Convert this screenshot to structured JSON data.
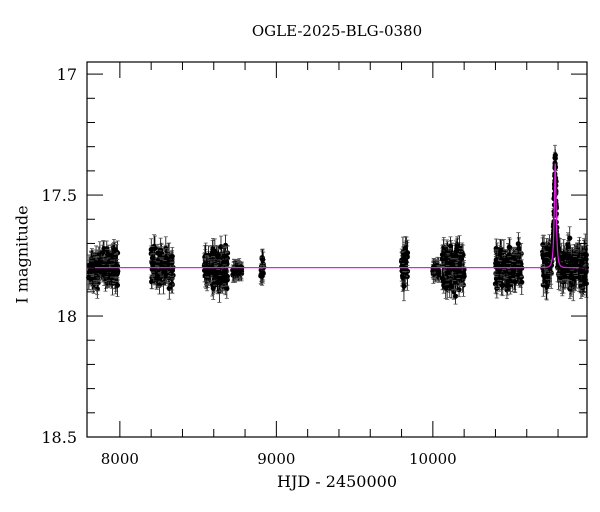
{
  "chart_data": {
    "type": "scatter",
    "title": "OGLE-2025-BLG-0380",
    "xlabel": "HJD - 2450000",
    "ylabel": "I magnitude",
    "xlim": [
      7790,
      10985
    ],
    "ylim": [
      18.5,
      16.95
    ],
    "y_inverted": true,
    "x_ticks": [
      8000,
      9000,
      10000
    ],
    "x_tick_labels": [
      "8000",
      "9000",
      "10000"
    ],
    "y_ticks": [
      17,
      17.5,
      18,
      18.5
    ],
    "y_tick_labels": [
      "17",
      "17.5",
      "18",
      "18.5"
    ],
    "grid": false,
    "legend": null,
    "series": [
      {
        "name": "OGLE I-band photometry",
        "kind": "points_with_errorbars",
        "color": "#000000",
        "seasons": [
          {
            "x_range": [
              7800,
              7990
            ],
            "mag_center": 17.8,
            "mag_spread": 0.07,
            "err": 0.04
          },
          {
            "x_range": [
              8200,
              8340
            ],
            "mag_center": 17.8,
            "mag_spread": 0.07,
            "err": 0.04
          },
          {
            "x_range": [
              8540,
              8690
            ],
            "mag_center": 17.8,
            "mag_spread": 0.08,
            "err": 0.04
          },
          {
            "x_range": [
              8720,
              8780
            ],
            "mag_center": 17.81,
            "mag_spread": 0.02,
            "err": 0.03
          },
          {
            "x_range": [
              8900,
              8920
            ],
            "mag_center": 17.8,
            "mag_spread": 0.05,
            "err": 0.04
          },
          {
            "x_range": [
              9800,
              9840
            ],
            "mag_center": 17.8,
            "mag_spread": 0.07,
            "err": 0.05
          },
          {
            "x_range": [
              10000,
              10040
            ],
            "mag_center": 17.81,
            "mag_spread": 0.02,
            "err": 0.03
          },
          {
            "x_range": [
              10060,
              10200
            ],
            "mag_center": 17.8,
            "mag_spread": 0.08,
            "err": 0.04
          },
          {
            "x_range": [
              10400,
              10570
            ],
            "mag_center": 17.8,
            "mag_spread": 0.08,
            "err": 0.04
          },
          {
            "x_range": [
              10700,
              10985
            ],
            "mag_center": 17.8,
            "mag_spread": 0.08,
            "err": 0.05
          }
        ],
        "peak": {
          "x": 10780,
          "mag": 17.32
        }
      },
      {
        "name": "microlensing model",
        "kind": "line",
        "color": "#e020e0",
        "baseline_mag": 17.8,
        "t0": 10782,
        "peak_mag": 17.37,
        "tE_days": 12
      }
    ]
  }
}
